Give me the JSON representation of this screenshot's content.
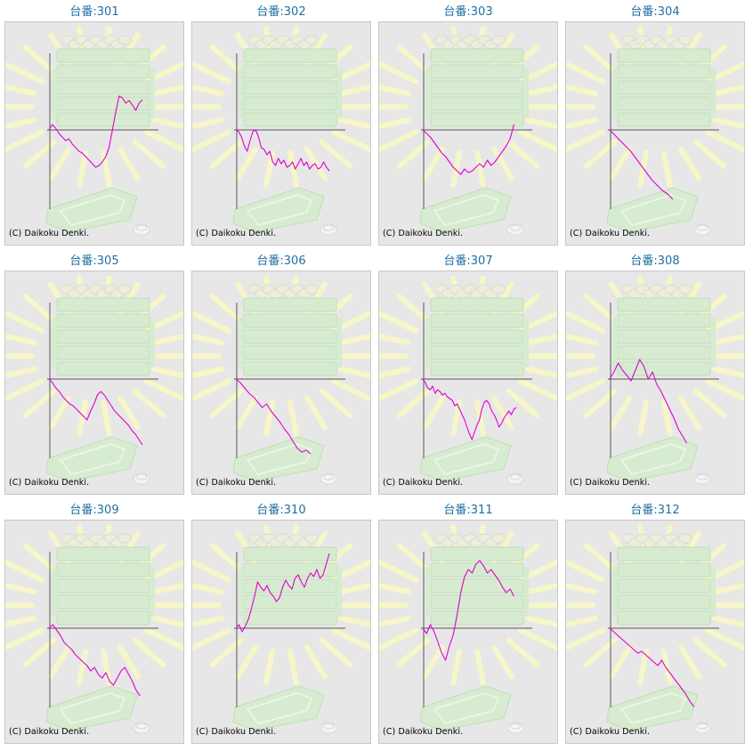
{
  "copyright": "(C) Daikoku Denki.",
  "colors": {
    "line": "#e000d0",
    "axis": "#555555",
    "title": "#1f6fa3",
    "panel_bg": "#e7e7e7"
  },
  "chart_data": [
    {
      "type": "line",
      "title": "台番:301",
      "y": [
        0,
        6,
        2,
        -4,
        -8,
        -12,
        -10,
        -16,
        -20,
        -24,
        -26,
        -30,
        -34,
        -38,
        -42,
        -40,
        -36,
        -30,
        -20,
        0,
        20,
        38,
        36,
        30,
        33,
        28,
        22,
        30,
        34
      ]
    },
    {
      "type": "line",
      "title": "台番:302",
      "y": [
        0,
        -2,
        -8,
        -18,
        -24,
        -12,
        -2,
        0,
        -8,
        -20,
        -22,
        -28,
        -24,
        -36,
        -40,
        -32,
        -38,
        -34,
        -42,
        -40,
        -36,
        -44,
        -38,
        -32,
        -40,
        -36,
        -44,
        -40,
        -38,
        -44,
        -42,
        -36,
        -42,
        -46
      ]
    },
    {
      "type": "line",
      "title": "台番:303",
      "y": [
        0,
        -4,
        -8,
        -14,
        -20,
        -26,
        -30,
        -36,
        -42,
        -46,
        -50,
        -44,
        -48,
        -46,
        -42,
        -38,
        -42,
        -34,
        -40,
        -36,
        -30,
        -24,
        -18,
        -10,
        6
      ]
    },
    {
      "type": "line",
      "title": "台番:304",
      "y": [
        0,
        -6,
        -12,
        -18,
        -24,
        -32,
        -40,
        -48,
        -56,
        -62,
        -68,
        -72,
        -78
      ]
    },
    {
      "type": "line",
      "title": "台番:305",
      "y": [
        0,
        -4,
        -10,
        -14,
        -20,
        -24,
        -28,
        -30,
        -34,
        -38,
        -42,
        -46,
        -36,
        -28,
        -18,
        -14,
        -18,
        -24,
        -30,
        -36,
        -40,
        -44,
        -48,
        -52,
        -58,
        -62,
        -68,
        -74
      ]
    },
    {
      "type": "line",
      "title": "台番:306",
      "y": [
        0,
        -4,
        -10,
        -16,
        -20,
        -26,
        -32,
        -28,
        -36,
        -42,
        -48,
        -56,
        -62,
        -70,
        -78,
        -82,
        -80,
        -84
      ]
    },
    {
      "type": "line",
      "title": "台番:307",
      "y": [
        0,
        -4,
        -10,
        -12,
        -8,
        -16,
        -12,
        -14,
        -18,
        -16,
        -20,
        -22,
        -24,
        -30,
        -28,
        -34,
        -40,
        -46,
        -54,
        -62,
        -68,
        -60,
        -52,
        -46,
        -34,
        -26,
        -24,
        -28,
        -36,
        -40,
        -46,
        -54,
        -50,
        -44,
        -40,
        -36,
        -40,
        -34,
        -32
      ]
    },
    {
      "type": "line",
      "title": "台番:308",
      "y": [
        0,
        8,
        18,
        10,
        4,
        -2,
        10,
        22,
        14,
        0,
        8,
        -6,
        -14,
        -24,
        -34,
        -44,
        -56,
        -64,
        -72
      ]
    },
    {
      "type": "line",
      "title": "台番:309",
      "y": [
        0,
        4,
        -2,
        -8,
        -16,
        -20,
        -24,
        -30,
        -34,
        -38,
        -42,
        -48,
        -44,
        -52,
        -56,
        -50,
        -60,
        -64,
        -56,
        -48,
        -44,
        -52,
        -60,
        -70,
        -76
      ]
    },
    {
      "type": "line",
      "title": "台番:310",
      "y": [
        0,
        4,
        -4,
        2,
        10,
        22,
        36,
        52,
        46,
        42,
        48,
        40,
        36,
        30,
        34,
        46,
        54,
        48,
        44,
        56,
        60,
        52,
        46,
        56,
        62,
        58,
        66,
        56,
        60,
        72,
        84
      ]
    },
    {
      "type": "line",
      "title": "台番:311",
      "y": [
        0,
        -6,
        4,
        -4,
        -16,
        -28,
        -36,
        -20,
        -8,
        14,
        40,
        58,
        66,
        62,
        72,
        76,
        70,
        62,
        66,
        60,
        54,
        46,
        40,
        44,
        36
      ]
    },
    {
      "type": "line",
      "title": "台番:312",
      "y": [
        0,
        -4,
        -8,
        -12,
        -16,
        -20,
        -24,
        -28,
        -26,
        -30,
        -34,
        -38,
        -42,
        -36,
        -44,
        -50,
        -56,
        -62,
        -68,
        -74,
        -82,
        -88
      ]
    }
  ]
}
